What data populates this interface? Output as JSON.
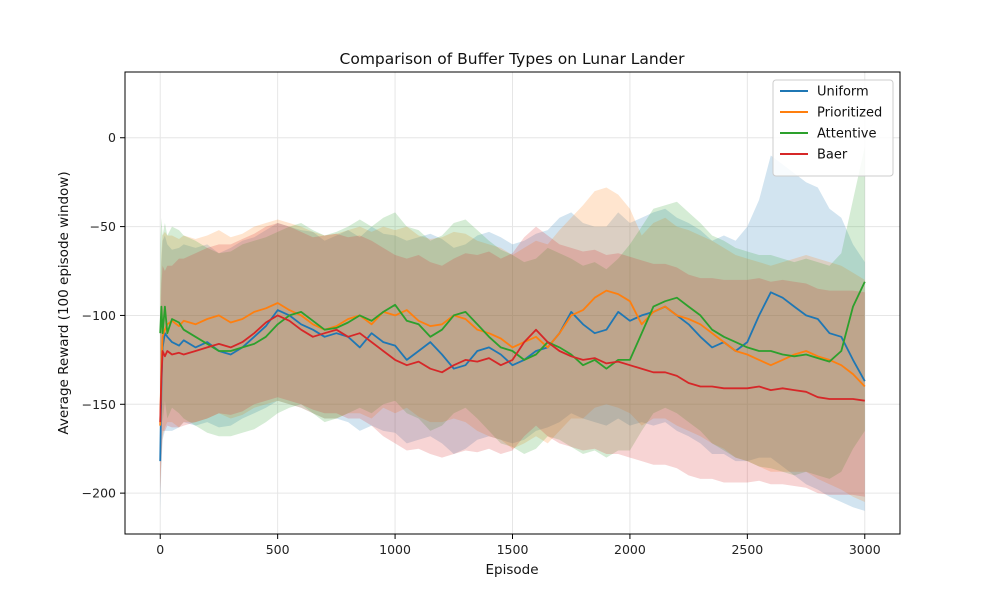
{
  "chart_data": {
    "type": "line",
    "title": "Comparison of Buffer Types on Lunar Lander",
    "xlabel": "Episode",
    "ylabel": "Average Reward (100 episode window)",
    "xlim": [
      -150,
      3150
    ],
    "ylim": [
      -223,
      37
    ],
    "xticks": [
      0,
      500,
      1000,
      1500,
      2000,
      2500,
      3000
    ],
    "yticks": [
      -200,
      -150,
      -100,
      -50,
      0
    ],
    "grid": true,
    "legend": "top-right",
    "series": [
      {
        "name": "Uniform",
        "color": "#1f77b4",
        "x": [
          0,
          5,
          10,
          20,
          30,
          50,
          80,
          100,
          150,
          200,
          250,
          300,
          350,
          400,
          450,
          500,
          550,
          600,
          650,
          700,
          750,
          800,
          850,
          900,
          950,
          1000,
          1050,
          1100,
          1150,
          1200,
          1250,
          1300,
          1350,
          1400,
          1450,
          1500,
          1550,
          1600,
          1650,
          1700,
          1750,
          1800,
          1850,
          1900,
          1950,
          2000,
          2050,
          2100,
          2150,
          2200,
          2250,
          2300,
          2350,
          2400,
          2450,
          2500,
          2550,
          2600,
          2650,
          2700,
          2750,
          2800,
          2850,
          2900,
          2950,
          3000
        ],
        "y": [
          -182,
          -140,
          -118,
          -110,
          -112,
          -115,
          -117,
          -114,
          -118,
          -115,
          -120,
          -122,
          -118,
          -112,
          -106,
          -97,
          -100,
          -105,
          -108,
          -112,
          -110,
          -112,
          -118,
          -110,
          -115,
          -117,
          -125,
          -120,
          -115,
          -122,
          -130,
          -128,
          -120,
          -118,
          -122,
          -128,
          -125,
          -120,
          -118,
          -110,
          -98,
          -105,
          -110,
          -108,
          -98,
          -103,
          -100,
          -98,
          -95,
          -100,
          -105,
          -112,
          -118,
          -115,
          -120,
          -115,
          -100,
          -87,
          -90,
          -95,
          -100,
          -102,
          -110,
          -112,
          -125,
          -137
        ],
        "upper": [
          -112,
          -70,
          -58,
          -55,
          -60,
          -63,
          -62,
          -60,
          -62,
          -60,
          -65,
          -62,
          -58,
          -56,
          -52,
          -48,
          -50,
          -52,
          -53,
          -58,
          -55,
          -52,
          -56,
          -50,
          -54,
          -55,
          -58,
          -56,
          -54,
          -57,
          -62,
          -60,
          -55,
          -53,
          -56,
          -60,
          -58,
          -54,
          -52,
          -45,
          -42,
          -48,
          -50,
          -50,
          -42,
          -48,
          -45,
          -42,
          -40,
          -45,
          -48,
          -52,
          -58,
          -55,
          -58,
          -50,
          -35,
          -10,
          -15,
          -20,
          -25,
          -28,
          -40,
          -45,
          -60,
          -70
        ],
        "lower": [
          -210,
          -185,
          -170,
          -165,
          -165,
          -165,
          -163,
          -160,
          -162,
          -160,
          -163,
          -162,
          -158,
          -155,
          -152,
          -148,
          -150,
          -152,
          -155,
          -158,
          -158,
          -160,
          -165,
          -162,
          -165,
          -166,
          -172,
          -170,
          -168,
          -172,
          -178,
          -175,
          -170,
          -168,
          -170,
          -172,
          -170,
          -165,
          -163,
          -160,
          -155,
          -158,
          -160,
          -162,
          -158,
          -162,
          -160,
          -162,
          -160,
          -165,
          -168,
          -172,
          -178,
          -178,
          -182,
          -182,
          -180,
          -180,
          -185,
          -190,
          -195,
          -198,
          -202,
          -205,
          -208,
          -210
        ]
      },
      {
        "name": "Prioritized",
        "color": "#ff7f0e",
        "x": [
          0,
          5,
          10,
          20,
          30,
          50,
          80,
          100,
          150,
          200,
          250,
          300,
          350,
          400,
          450,
          500,
          550,
          600,
          650,
          700,
          750,
          800,
          850,
          900,
          950,
          1000,
          1050,
          1100,
          1150,
          1200,
          1250,
          1300,
          1350,
          1400,
          1450,
          1500,
          1550,
          1600,
          1650,
          1700,
          1750,
          1800,
          1850,
          1900,
          1950,
          2000,
          2050,
          2100,
          2150,
          2200,
          2250,
          2300,
          2350,
          2400,
          2450,
          2500,
          2550,
          2600,
          2650,
          2700,
          2750,
          2800,
          2850,
          2900,
          2950,
          3000
        ],
        "y": [
          -162,
          -130,
          -112,
          -108,
          -105,
          -103,
          -106,
          -103,
          -105,
          -102,
          -100,
          -104,
          -102,
          -98,
          -96,
          -93,
          -97,
          -100,
          -105,
          -108,
          -106,
          -102,
          -100,
          -105,
          -98,
          -100,
          -97,
          -103,
          -106,
          -105,
          -100,
          -102,
          -108,
          -110,
          -113,
          -118,
          -115,
          -112,
          -118,
          -110,
          -100,
          -97,
          -90,
          -86,
          -88,
          -92,
          -105,
          -98,
          -95,
          -100,
          -102,
          -105,
          -110,
          -115,
          -120,
          -122,
          -125,
          -128,
          -125,
          -122,
          -120,
          -123,
          -125,
          -128,
          -133,
          -140
        ],
        "upper": [
          -90,
          -65,
          -55,
          -53,
          -55,
          -55,
          -57,
          -55,
          -57,
          -55,
          -52,
          -56,
          -54,
          -50,
          -48,
          -46,
          -48,
          -50,
          -53,
          -55,
          -54,
          -52,
          -50,
          -53,
          -50,
          -52,
          -50,
          -55,
          -57,
          -56,
          -53,
          -54,
          -58,
          -60,
          -62,
          -66,
          -62,
          -58,
          -60,
          -52,
          -45,
          -38,
          -30,
          -28,
          -32,
          -40,
          -55,
          -48,
          -45,
          -50,
          -52,
          -55,
          -58,
          -62,
          -66,
          -68,
          -70,
          -72,
          -70,
          -68,
          -66,
          -68,
          -70,
          -72,
          -76,
          -80
        ],
        "lower": [
          -200,
          -180,
          -168,
          -163,
          -160,
          -160,
          -163,
          -160,
          -160,
          -158,
          -155,
          -158,
          -156,
          -152,
          -150,
          -148,
          -150,
          -152,
          -155,
          -158,
          -158,
          -155,
          -155,
          -158,
          -152,
          -155,
          -152,
          -157,
          -160,
          -160,
          -158,
          -160,
          -165,
          -168,
          -170,
          -175,
          -172,
          -168,
          -172,
          -165,
          -158,
          -158,
          -152,
          -150,
          -152,
          -155,
          -162,
          -158,
          -158,
          -162,
          -165,
          -168,
          -172,
          -175,
          -180,
          -182,
          -185,
          -188,
          -188,
          -188,
          -188,
          -192,
          -195,
          -198,
          -202,
          -205
        ]
      },
      {
        "name": "Attentive",
        "color": "#2ca02c",
        "x": [
          0,
          5,
          10,
          20,
          30,
          50,
          80,
          100,
          150,
          200,
          250,
          300,
          350,
          400,
          450,
          500,
          550,
          600,
          650,
          700,
          750,
          800,
          850,
          900,
          950,
          1000,
          1050,
          1100,
          1150,
          1200,
          1250,
          1300,
          1350,
          1400,
          1450,
          1500,
          1550,
          1600,
          1650,
          1700,
          1750,
          1800,
          1850,
          1900,
          1950,
          2000,
          2050,
          2100,
          2150,
          2200,
          2250,
          2300,
          2350,
          2400,
          2450,
          2500,
          2550,
          2600,
          2650,
          2700,
          2750,
          2800,
          2850,
          2900,
          2950,
          3000
        ],
        "y": [
          -110,
          -95,
          -110,
          -95,
          -110,
          -102,
          -104,
          -108,
          -112,
          -116,
          -120,
          -120,
          -118,
          -116,
          -112,
          -105,
          -100,
          -98,
          -103,
          -108,
          -107,
          -104,
          -100,
          -103,
          -98,
          -94,
          -103,
          -105,
          -112,
          -108,
          -100,
          -98,
          -105,
          -112,
          -118,
          -120,
          -125,
          -122,
          -115,
          -118,
          -122,
          -128,
          -125,
          -130,
          -125,
          -125,
          -110,
          -95,
          -92,
          -90,
          -95,
          -100,
          -108,
          -112,
          -115,
          -118,
          -120,
          -120,
          -122,
          -123,
          -122,
          -124,
          -126,
          -120,
          -95,
          -81
        ],
        "upper": [
          -60,
          -45,
          -55,
          -48,
          -55,
          -50,
          -52,
          -55,
          -58,
          -62,
          -65,
          -64,
          -60,
          -58,
          -56,
          -53,
          -50,
          -48,
          -52,
          -55,
          -53,
          -50,
          -46,
          -50,
          -45,
          -42,
          -50,
          -52,
          -58,
          -55,
          -48,
          -46,
          -52,
          -58,
          -63,
          -66,
          -70,
          -68,
          -62,
          -65,
          -68,
          -72,
          -70,
          -74,
          -68,
          -60,
          -50,
          -40,
          -38,
          -36,
          -42,
          -48,
          -55,
          -58,
          -62,
          -64,
          -66,
          -66,
          -68,
          -70,
          -68,
          -70,
          -72,
          -65,
          -35,
          -5
        ],
        "lower": [
          -160,
          -145,
          -160,
          -148,
          -158,
          -152,
          -155,
          -158,
          -162,
          -166,
          -168,
          -168,
          -166,
          -164,
          -160,
          -155,
          -152,
          -150,
          -155,
          -160,
          -158,
          -155,
          -152,
          -155,
          -150,
          -148,
          -155,
          -158,
          -165,
          -162,
          -155,
          -152,
          -158,
          -165,
          -172,
          -174,
          -178,
          -175,
          -168,
          -170,
          -174,
          -178,
          -176,
          -180,
          -176,
          -176,
          -165,
          -155,
          -152,
          -155,
          -160,
          -165,
          -172,
          -176,
          -180,
          -182,
          -185,
          -186,
          -188,
          -190,
          -188,
          -190,
          -192,
          -188,
          -175,
          -165
        ]
      },
      {
        "name": "Baer",
        "color": "#d62728",
        "x": [
          0,
          5,
          10,
          20,
          30,
          50,
          80,
          100,
          150,
          200,
          250,
          300,
          350,
          400,
          450,
          500,
          550,
          600,
          650,
          700,
          750,
          800,
          850,
          900,
          950,
          1000,
          1050,
          1100,
          1150,
          1200,
          1250,
          1300,
          1350,
          1400,
          1450,
          1500,
          1550,
          1600,
          1650,
          1700,
          1750,
          1800,
          1850,
          1900,
          1950,
          2000,
          2050,
          2100,
          2150,
          2200,
          2250,
          2300,
          2350,
          2400,
          2450,
          2500,
          2550,
          2600,
          2650,
          2700,
          2750,
          2800,
          2850,
          2900,
          2950,
          3000
        ],
        "y": [
          -160,
          -135,
          -120,
          -123,
          -120,
          -122,
          -121,
          -122,
          -120,
          -118,
          -116,
          -118,
          -115,
          -110,
          -104,
          -100,
          -103,
          -108,
          -112,
          -110,
          -108,
          -112,
          -110,
          -115,
          -120,
          -125,
          -128,
          -126,
          -130,
          -132,
          -128,
          -125,
          -126,
          -124,
          -128,
          -125,
          -115,
          -108,
          -115,
          -120,
          -123,
          -125,
          -124,
          -127,
          -126,
          -128,
          -130,
          -132,
          -132,
          -134,
          -138,
          -140,
          -140,
          -141,
          -141,
          -141,
          -140,
          -142,
          -141,
          -142,
          -143,
          -146,
          -147,
          -147,
          -147,
          -148
        ],
        "upper": [
          -110,
          -82,
          -72,
          -75,
          -72,
          -72,
          -68,
          -68,
          -65,
          -62,
          -60,
          -60,
          -57,
          -54,
          -50,
          -48,
          -50,
          -53,
          -56,
          -55,
          -54,
          -56,
          -55,
          -58,
          -62,
          -66,
          -68,
          -66,
          -70,
          -72,
          -68,
          -65,
          -66,
          -64,
          -68,
          -65,
          -56,
          -50,
          -55,
          -60,
          -62,
          -64,
          -63,
          -66,
          -65,
          -67,
          -69,
          -71,
          -71,
          -73,
          -77,
          -79,
          -79,
          -80,
          -80,
          -80,
          -79,
          -81,
          -80,
          -81,
          -82,
          -85,
          -86,
          -86,
          -86,
          -87
        ],
        "lower": [
          -200,
          -180,
          -165,
          -165,
          -162,
          -163,
          -163,
          -162,
          -160,
          -158,
          -155,
          -156,
          -154,
          -150,
          -148,
          -146,
          -148,
          -150,
          -153,
          -155,
          -155,
          -158,
          -158,
          -162,
          -168,
          -172,
          -176,
          -175,
          -178,
          -180,
          -178,
          -176,
          -177,
          -175,
          -178,
          -176,
          -168,
          -162,
          -168,
          -172,
          -174,
          -176,
          -175,
          -178,
          -178,
          -180,
          -182,
          -184,
          -184,
          -186,
          -190,
          -192,
          -192,
          -194,
          -194,
          -194,
          -193,
          -195,
          -195,
          -196,
          -197,
          -200,
          -201,
          -201,
          -201,
          -202
        ]
      }
    ]
  }
}
